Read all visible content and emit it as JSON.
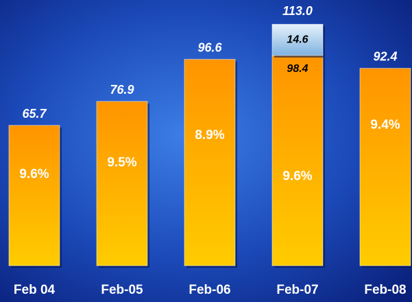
{
  "chart_data": {
    "type": "stacked_bar",
    "categories": [
      "Feb 04",
      "Feb-05",
      "Feb-06",
      "Feb-07",
      "Feb-08"
    ],
    "series": [
      {
        "color": "#ff9a00",
        "values": [
          65.7,
          76.9,
          96.6,
          98.4,
          92.4
        ],
        "value_labels": [
          "65.7",
          "76.9",
          "96.6",
          "98.4",
          "92.4"
        ]
      },
      {
        "color": "#a9cdea",
        "values": [
          null,
          null,
          null,
          14.6,
          null
        ],
        "value_labels": [
          null,
          null,
          null,
          "14.6",
          null
        ]
      }
    ],
    "total_labels": [
      null,
      null,
      null,
      "113.0",
      null
    ],
    "rate_labels": [
      "9.6%",
      "9.5%",
      "8.9%",
      "9.6%",
      "9.4%"
    ]
  }
}
